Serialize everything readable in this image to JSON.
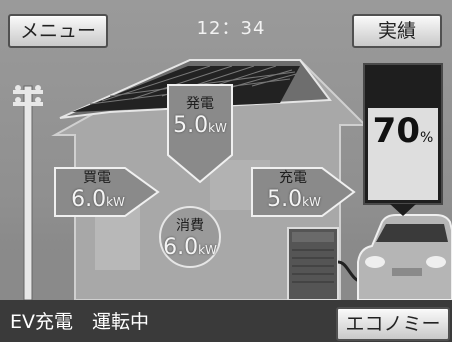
{
  "header": {
    "menu_label": "メニュー",
    "time": "12：34",
    "results_label": "実績"
  },
  "flows": {
    "generation": {
      "label": "発電",
      "value": "5.0",
      "unit": "kW"
    },
    "purchase": {
      "label": "買電",
      "value": "6.0",
      "unit": "kW"
    },
    "consumption": {
      "label": "消費",
      "value": "6.0",
      "unit": "kW"
    },
    "charging": {
      "label": "充電",
      "value": "5.0",
      "unit": "kW"
    }
  },
  "battery": {
    "percent": "70",
    "unit": "%",
    "level": 0.7
  },
  "footer": {
    "status": "EV充電　運転中",
    "eco_label": "エコノミー"
  },
  "colors": {
    "background": "#8f8f8f",
    "status_bar": "#3a3a3a",
    "arrow_fill": "#8a8a8a"
  },
  "icons": [
    "utility-pole-icon",
    "house-icon",
    "solar-panel-icon",
    "power-conditioner-icon",
    "ev-car-icon"
  ]
}
